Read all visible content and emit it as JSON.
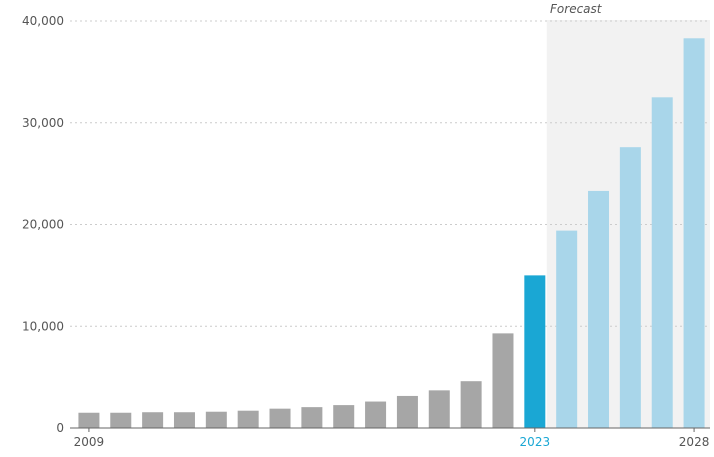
{
  "chart_data": {
    "type": "bar",
    "title": "",
    "xlabel": "",
    "ylabel": "",
    "ylim": [
      0,
      40000
    ],
    "yticks": [
      0,
      10000,
      20000,
      30000,
      40000
    ],
    "ytick_labels": [
      "0",
      "10,000",
      "20,000",
      "30,000",
      "40,000"
    ],
    "grid": "horizontal dotted",
    "categories": [
      "2009",
      "2010",
      "2011",
      "2012",
      "2013",
      "2014",
      "2015",
      "2016",
      "2017",
      "2018",
      "2019",
      "2020",
      "2021",
      "2022",
      "2023",
      "2024",
      "2025",
      "2026",
      "2027",
      "2028"
    ],
    "x_tick_labels": [
      {
        "year": "2009",
        "text": "2009",
        "style": "normal"
      },
      {
        "year": "2023",
        "text": "2023",
        "style": "highlight"
      },
      {
        "year": "2028",
        "text": "2028",
        "style": "normal"
      }
    ],
    "values": [
      1500,
      1500,
      1550,
      1550,
      1600,
      1700,
      1900,
      2050,
      2250,
      2600,
      3150,
      3700,
      4600,
      9300,
      15000,
      19400,
      23300,
      27600,
      32500,
      38300
    ],
    "bar_styles": [
      "historical",
      "historical",
      "historical",
      "historical",
      "historical",
      "historical",
      "historical",
      "historical",
      "historical",
      "historical",
      "historical",
      "historical",
      "historical",
      "historical",
      "current",
      "forecast",
      "forecast",
      "forecast",
      "forecast",
      "forecast"
    ],
    "forecast_region": {
      "start": "2024",
      "end": "2028",
      "label": "Forecast"
    },
    "colors": {
      "historical": "#a6a6a6",
      "current": "#1aa7d4",
      "forecast": "#a9d6ea",
      "forecast_shading": "#f2f2f2",
      "grid": "#cccccc",
      "axis": "#666666",
      "text": "#555555",
      "highlight_text": "#1aa7d4"
    }
  }
}
